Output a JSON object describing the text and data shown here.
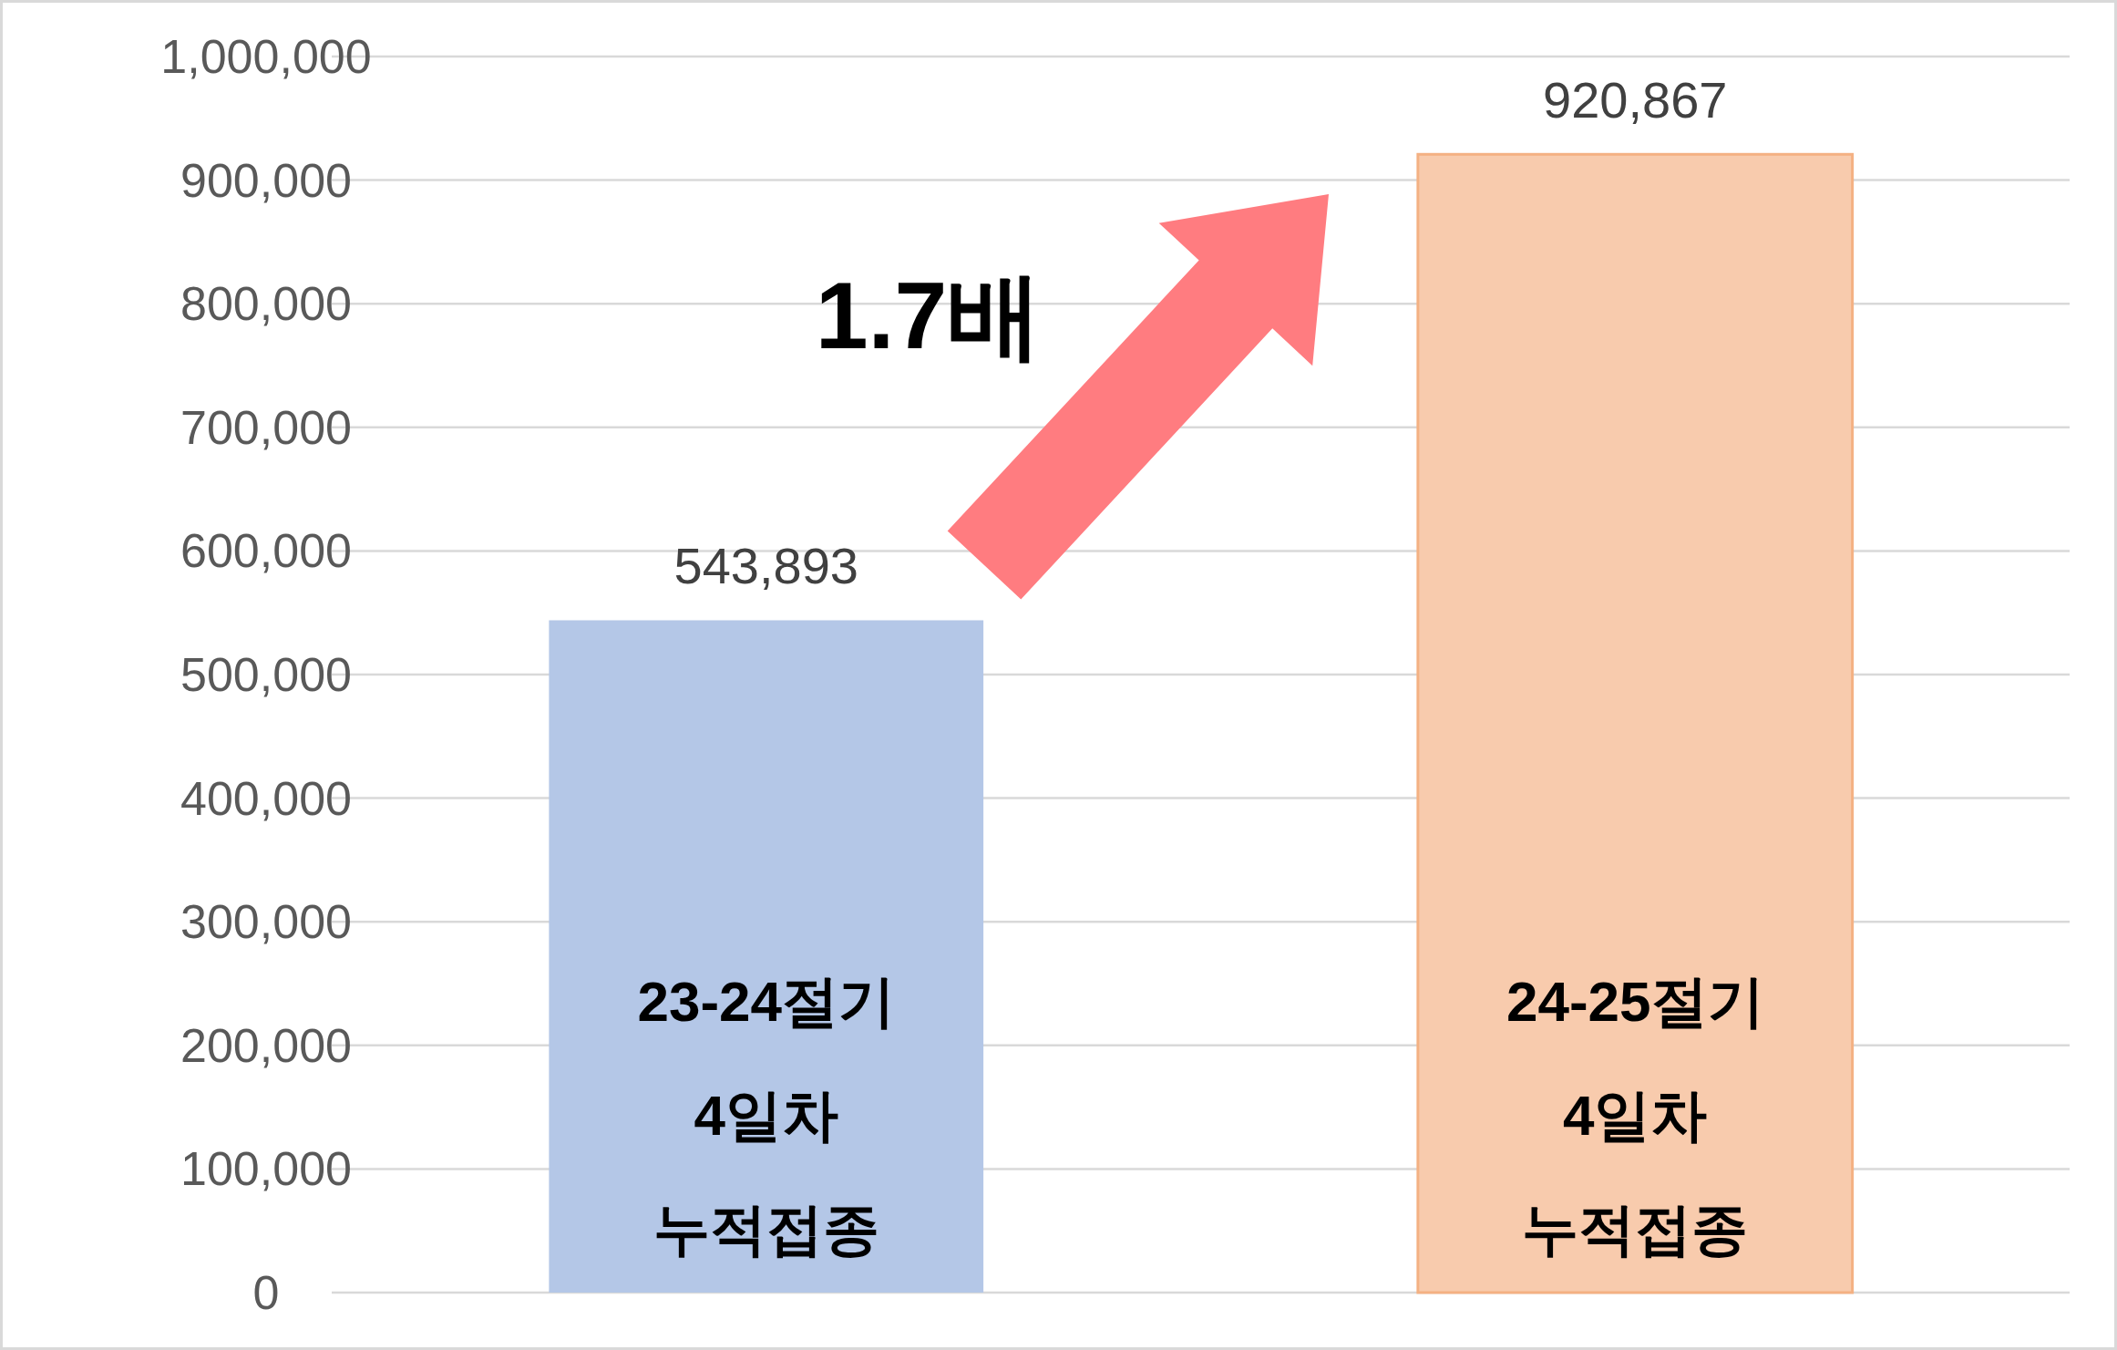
{
  "chart_data": {
    "type": "bar",
    "categories": [
      "23-24절기\n4일차\n누적접종",
      "24-25절기\n4일차\n누적접종"
    ],
    "values": [
      543893,
      920867
    ],
    "colors": [
      "#b4c7e7",
      "#f8cbad"
    ],
    "value_labels": [
      "543,893",
      "920,867"
    ],
    "ylim": [
      0,
      1000000
    ],
    "yticks": [
      {
        "value": 0,
        "label": "0"
      },
      {
        "value": 100000,
        "label": "100,000"
      },
      {
        "value": 200000,
        "label": "200,000"
      },
      {
        "value": 300000,
        "label": "300,000"
      },
      {
        "value": 400000,
        "label": "400,000"
      },
      {
        "value": 500000,
        "label": "500,000"
      },
      {
        "value": 600000,
        "label": "600,000"
      },
      {
        "value": 700000,
        "label": "700,000"
      },
      {
        "value": 800000,
        "label": "800,000"
      },
      {
        "value": 900000,
        "label": "900,000"
      },
      {
        "value": 1000000,
        "label": "1,000,000"
      }
    ],
    "grid": "y",
    "annotations": [
      "1.7배"
    ]
  }
}
